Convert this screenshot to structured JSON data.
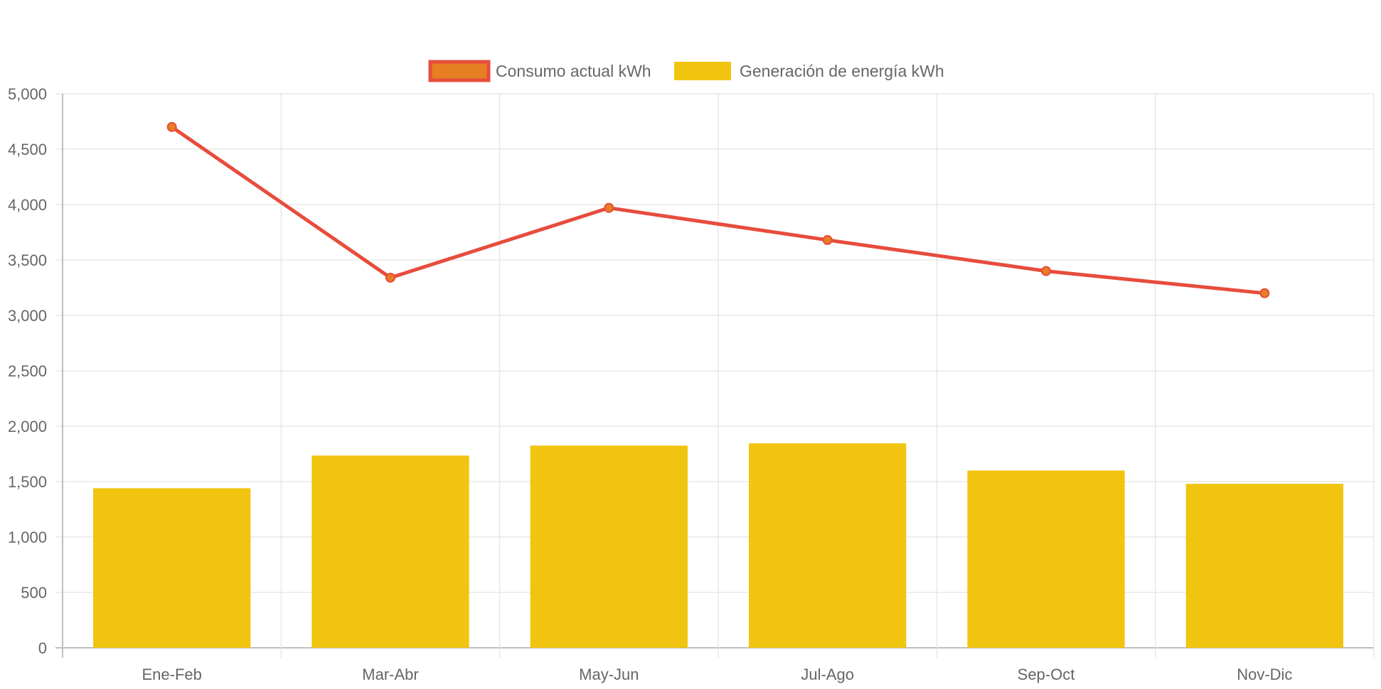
{
  "chart_data": {
    "type": "bar",
    "categories": [
      "Ene-Feb",
      "Mar-Abr",
      "May-Jun",
      "Jul-Ago",
      "Sep-Oct",
      "Nov-Dic"
    ],
    "series": [
      {
        "name": "Consumo actual kWh",
        "type": "line",
        "values": [
          4700,
          3340,
          3970,
          3680,
          3400,
          3200
        ],
        "color": "#e74c3c",
        "point_color": "#e67e22"
      },
      {
        "name": "Generación de energía kWh",
        "type": "bar",
        "values": [
          1440,
          1735,
          1825,
          1845,
          1600,
          1480
        ],
        "color": "#f1c40f"
      }
    ],
    "ylim": [
      0,
      5000
    ],
    "y_ticks": [
      "0",
      "500",
      "1,000",
      "1,500",
      "2,000",
      "2,500",
      "3,000",
      "3,500",
      "4,000",
      "4,500",
      "5,000"
    ],
    "grid": true,
    "legend_position": "top"
  }
}
